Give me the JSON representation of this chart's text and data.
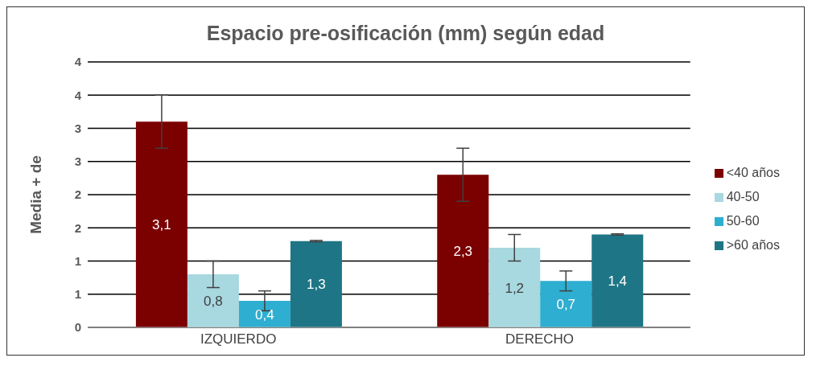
{
  "chart_data": {
    "type": "bar",
    "title": "Espacio pre-osificación (mm) según edad",
    "ylabel": "Media + de",
    "categories": [
      "IZQUIERDO",
      "DERECHO"
    ],
    "series": [
      {
        "name": "<40 años",
        "color": "#7b0000",
        "values": [
          3.1,
          2.3
        ],
        "errors": [
          0.4,
          0.4
        ],
        "value_labels": [
          "3,1",
          "2,3"
        ]
      },
      {
        "name": "40-50",
        "color": "#a8d8e0",
        "values": [
          0.8,
          1.2
        ],
        "errors": [
          0.2,
          0.2
        ],
        "value_labels": [
          "0,8",
          "1,2"
        ]
      },
      {
        "name": "50-60",
        "color": "#2eaed0",
        "values": [
          0.4,
          0.7
        ],
        "errors": [
          0.15,
          0.15
        ],
        "value_labels": [
          "0,4",
          "0,7"
        ]
      },
      {
        "name": ">60 años",
        "color": "#1e7585",
        "values": [
          1.3,
          1.4
        ],
        "errors": [
          0.01,
          0.01
        ],
        "value_labels": [
          "1,3",
          "1,4"
        ]
      }
    ],
    "ylim": [
      0,
      4
    ],
    "yticks": [
      0,
      {
        "value": 0.5,
        "label": "1"
      },
      1,
      {
        "value": 1.5,
        "label": "2"
      },
      2,
      {
        "value": 2.5,
        "label": "3"
      },
      3,
      {
        "value": 3.5,
        "label": "4"
      },
      4
    ],
    "grid": "y",
    "legend": "right"
  }
}
